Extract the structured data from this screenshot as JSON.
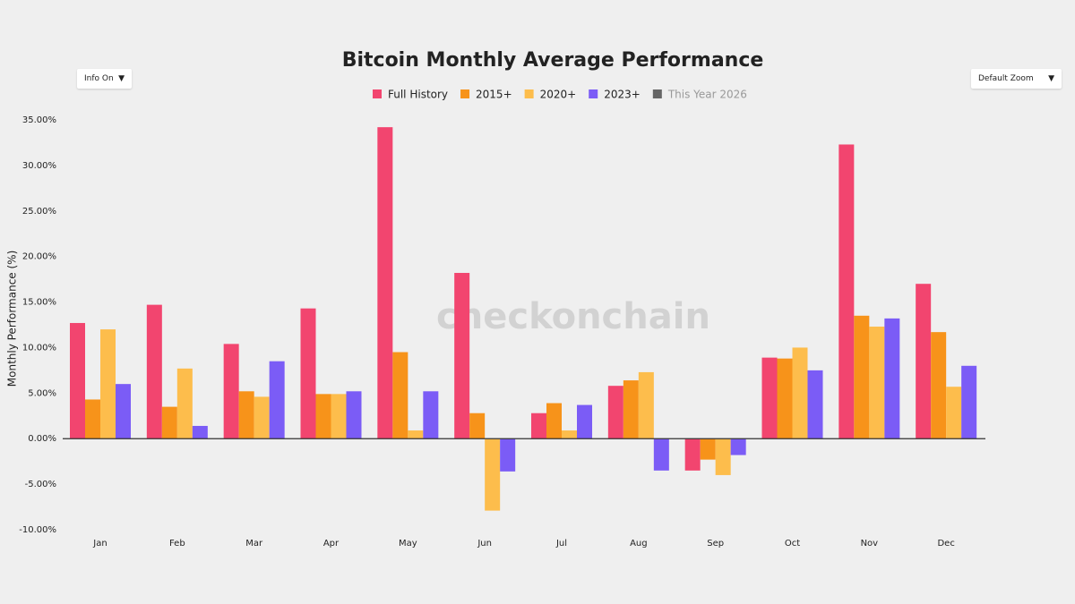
{
  "chart_data": {
    "type": "bar",
    "title": "Bitcoin Monthly Average Performance",
    "y_label": "Monthly Performance (%)",
    "watermark": "checkonchain",
    "controls": [
      "Info On",
      "Default Zoom"
    ],
    "categories": [
      "Jan",
      "Feb",
      "Mar",
      "Apr",
      "May",
      "Jun",
      "Jul",
      "Aug",
      "Sep",
      "Oct",
      "Nov",
      "Dec"
    ],
    "series": [
      {
        "name": "Full History",
        "color": "#f2456f",
        "values": [
          12.7,
          14.7,
          10.4,
          14.3,
          34.2,
          18.2,
          2.8,
          5.8,
          -3.5,
          8.9,
          32.3,
          17.0
        ]
      },
      {
        "name": "2015+",
        "color": "#f7931a",
        "values": [
          4.3,
          3.5,
          5.2,
          4.9,
          9.5,
          2.8,
          3.9,
          6.4,
          -2.3,
          8.8,
          13.5,
          11.7
        ]
      },
      {
        "name": "2020+",
        "color": "#fdbd4c",
        "values": [
          12.0,
          7.7,
          4.6,
          4.9,
          0.9,
          -7.9,
          0.9,
          7.3,
          -4.0,
          10.0,
          12.3,
          5.7
        ]
      },
      {
        "name": "2023+",
        "color": "#7b5cf6",
        "values": [
          6.0,
          1.4,
          8.5,
          5.2,
          5.2,
          -3.6,
          3.7,
          -3.5,
          -1.8,
          7.5,
          13.2,
          8.0
        ]
      },
      {
        "name": "This Year 2026",
        "color": "#666666",
        "hidden": true,
        "values": [
          null,
          null,
          null,
          null,
          null,
          null,
          null,
          null,
          null,
          null,
          null,
          null
        ]
      }
    ],
    "ylim": [
      -10,
      35
    ],
    "yticks": [
      {
        "value": -10,
        "label": "-10.00%"
      },
      {
        "value": -5,
        "label": "-5.00%"
      },
      {
        "value": 0,
        "label": "0.00%"
      },
      {
        "value": 5,
        "label": "5.00%"
      },
      {
        "value": 10,
        "label": "10.00%"
      },
      {
        "value": 15,
        "label": "15.00%"
      },
      {
        "value": 20,
        "label": "20.00%"
      },
      {
        "value": 25,
        "label": "25.00%"
      },
      {
        "value": 30,
        "label": "30.00%"
      },
      {
        "value": 35,
        "label": "35.00%"
      }
    ],
    "grid": false,
    "legend": "top"
  }
}
